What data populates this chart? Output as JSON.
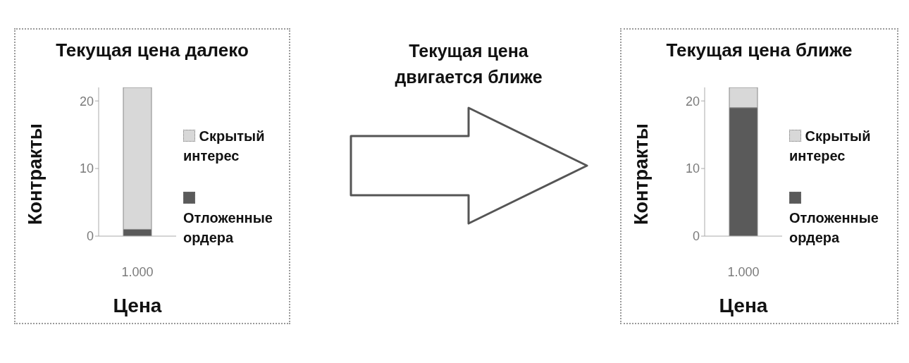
{
  "chart_data": [
    {
      "type": "bar",
      "title": "Текущая цена далеко",
      "xlabel": "Цена",
      "ylabel": "Контракты",
      "categories": [
        "1.000"
      ],
      "stacked": true,
      "series": [
        {
          "name": "Отложенные ордера",
          "color": "#5a5a5a",
          "values": [
            1
          ]
        },
        {
          "name": "Скрытый интерес",
          "color": "#d8d8d8",
          "values": [
            21
          ]
        }
      ],
      "ylim": [
        0,
        22
      ],
      "yticks": [
        0,
        10,
        20
      ],
      "legend": "right"
    },
    {
      "type": "other",
      "title": "Текущая цена двигается ближе"
    },
    {
      "type": "bar",
      "title": "Текущая цена ближе",
      "xlabel": "Цена",
      "ylabel": "Контракты",
      "categories": [
        "1.000"
      ],
      "stacked": true,
      "series": [
        {
          "name": "Отложенные ордера",
          "color": "#5a5a5a",
          "values": [
            19
          ]
        },
        {
          "name": "Скрытый интерес",
          "color": "#d8d8d8",
          "values": [
            3
          ]
        }
      ],
      "ylim": [
        0,
        22
      ],
      "yticks": [
        0,
        10,
        20
      ],
      "legend": "right"
    }
  ]
}
